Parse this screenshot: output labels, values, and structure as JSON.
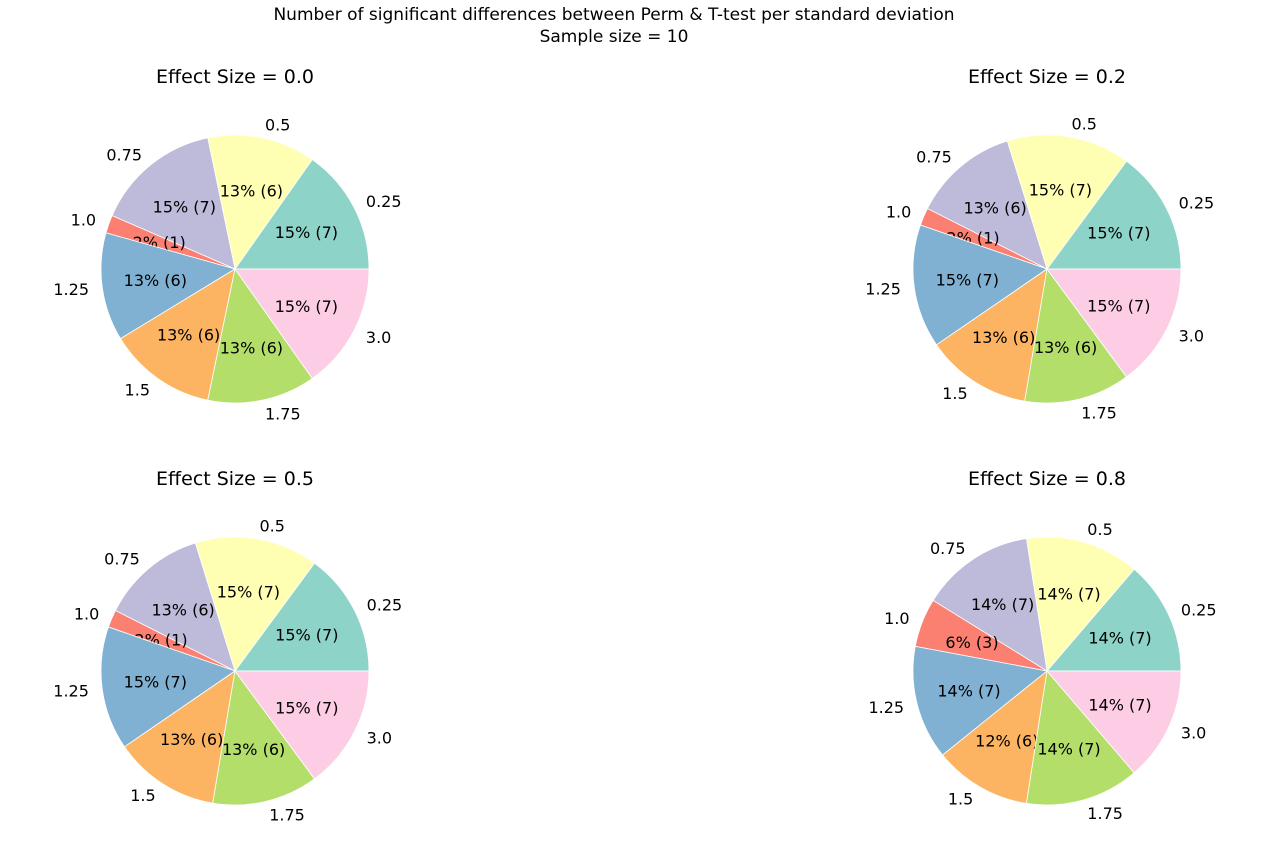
{
  "figure": {
    "title_line1": "Number of significant differences between Perm & T-test per standard deviation",
    "title_line2": "Sample size = 10"
  },
  "chart_data": [
    {
      "type": "pie",
      "title": "Effect Size =  0.0",
      "labels": [
        "0.25",
        "0.5",
        "0.75",
        "1.0",
        "1.25",
        "1.5",
        "1.75",
        "3.0"
      ],
      "values": [
        7,
        6,
        7,
        1,
        6,
        6,
        6,
        7
      ],
      "pct_labels": [
        "15% (7)",
        "13% (6)",
        "15% (7)",
        "2% (1)",
        "13% (6)",
        "13% (6)",
        "13% (6)",
        "15% (7)"
      ]
    },
    {
      "type": "pie",
      "title": "Effect Size =  0.2",
      "labels": [
        "0.25",
        "0.5",
        "0.75",
        "1.0",
        "1.25",
        "1.5",
        "1.75",
        "3.0"
      ],
      "values": [
        7,
        7,
        6,
        1,
        7,
        6,
        6,
        7
      ],
      "pct_labels": [
        "15% (7)",
        "15% (7)",
        "13% (6)",
        "2% (1)",
        "15% (7)",
        "13% (6)",
        "13% (6)",
        "15% (7)"
      ]
    },
    {
      "type": "pie",
      "title": "Effect Size =  0.5",
      "labels": [
        "0.25",
        "0.5",
        "0.75",
        "1.0",
        "1.25",
        "1.5",
        "1.75",
        "3.0"
      ],
      "values": [
        7,
        7,
        6,
        1,
        7,
        6,
        6,
        7
      ],
      "pct_labels": [
        "15% (7)",
        "15% (7)",
        "13% (6)",
        "2% (1)",
        "15% (7)",
        "13% (6)",
        "13% (6)",
        "15% (7)"
      ]
    },
    {
      "type": "pie",
      "title": "Effect Size =  0.8",
      "labels": [
        "0.25",
        "0.5",
        "0.75",
        "1.0",
        "1.25",
        "1.5",
        "1.75",
        "3.0"
      ],
      "values": [
        7,
        7,
        7,
        3,
        7,
        6,
        7,
        7
      ],
      "pct_labels": [
        "14% (7)",
        "14% (7)",
        "14% (7)",
        "6% (3)",
        "14% (7)",
        "12% (6)",
        "14% (7)",
        "14% (7)"
      ]
    }
  ],
  "colors": [
    "#8dd3c7",
    "#ffffb3",
    "#bebada",
    "#fb8072",
    "#80b1d3",
    "#fdb462",
    "#b3de69",
    "#fccde5"
  ]
}
